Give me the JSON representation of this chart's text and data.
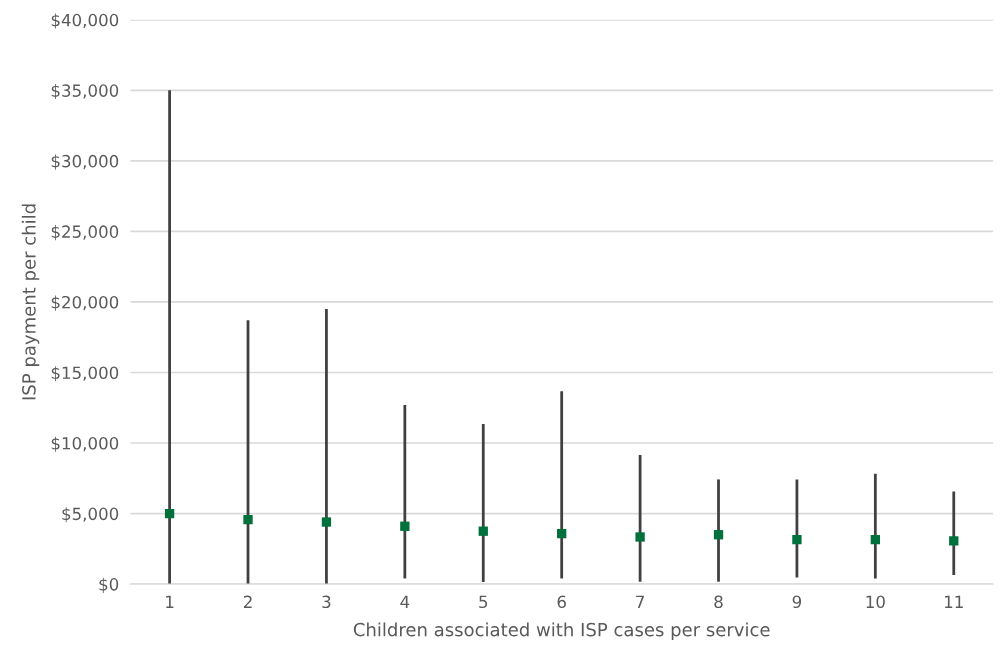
{
  "chart_data": {
    "type": "scatter",
    "xlabel": "Children associated with ISP cases per service",
    "ylabel": "ISP payment per child",
    "categories": [
      "1",
      "2",
      "3",
      "4",
      "5",
      "6",
      "7",
      "8",
      "9",
      "10",
      "11"
    ],
    "values": [
      5000,
      4570,
      4400,
      4100,
      3750,
      3580,
      3340,
      3500,
      3150,
      3150,
      3060
    ],
    "errors": [
      [
        0,
        35000
      ],
      [
        0,
        18700
      ],
      [
        0,
        19500
      ],
      [
        400,
        12700
      ],
      [
        150,
        11350
      ],
      [
        400,
        13670
      ],
      [
        170,
        9150
      ],
      [
        170,
        7420
      ],
      [
        470,
        7420
      ],
      [
        400,
        7820
      ],
      [
        640,
        6560
      ]
    ],
    "color": "#00703c",
    "marker": "square",
    "ylim": [
      0,
      40000
    ],
    "yticks": [
      {
        "value": 0,
        "label": "$0"
      },
      {
        "value": 5000,
        "label": "$5,000"
      },
      {
        "value": 10000,
        "label": "$10,000"
      },
      {
        "value": 15000,
        "label": "$15,000"
      },
      {
        "value": 20000,
        "label": "$20,000"
      },
      {
        "value": 25000,
        "label": "$25,000"
      },
      {
        "value": 30000,
        "label": "$30,000"
      },
      {
        "value": 35000,
        "label": "$35,000"
      },
      {
        "value": 40000,
        "label": "$40,000"
      }
    ],
    "grid": "y",
    "legend": false
  }
}
